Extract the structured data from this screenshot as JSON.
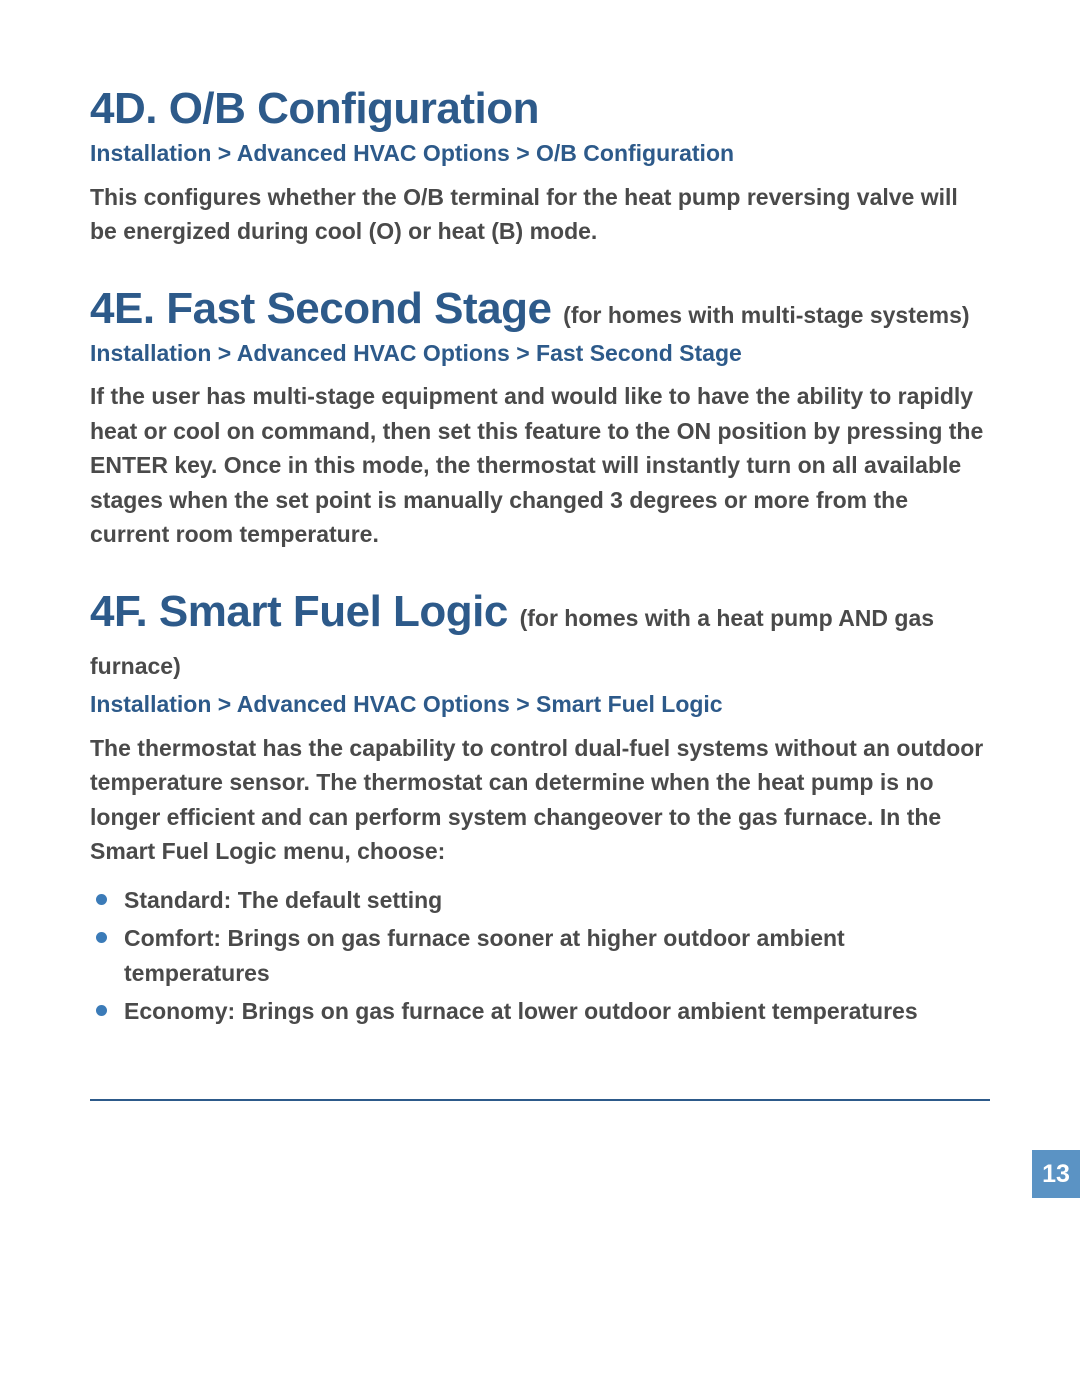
{
  "colors": {
    "heading_blue": "#2d5a8a",
    "body_gray": "#4a4a4a",
    "bullet_blue": "#3b7bb8",
    "pagebox_blue": "#5b93c4",
    "background": "#ffffff"
  },
  "typography": {
    "heading_font": "Arial Narrow",
    "heading_size_pt": 33,
    "body_font": "Verdana",
    "body_size_pt": 17,
    "body_weight": "bold"
  },
  "sections": [
    {
      "id": "4D",
      "title": "4D. O/B Configuration",
      "subtitle": "",
      "breadcrumb": "Installation > Advanced HVAC Options > O/B Configuration",
      "body": "This configures whether the O/B terminal for the heat pump reversing valve will be energized during cool (O) or heat (B) mode."
    },
    {
      "id": "4E",
      "title": "4E. Fast Second Stage ",
      "subtitle": "(for homes with multi-stage systems)",
      "breadcrumb": "Installation > Advanced HVAC Options > Fast Second Stage",
      "body": "If the user has multi-stage equipment and would like to have the ability to rapidly heat or cool on command, then set this feature to the ON position by pressing the ENTER key. Once in this mode, the thermostat will instantly turn on all available stages when the set point is manually changed 3 degrees or more from the current room temperature."
    },
    {
      "id": "4F",
      "title": "4F. Smart Fuel Logic ",
      "subtitle": "(for homes with a heat pump AND gas furnace)",
      "breadcrumb": "Installation > Advanced HVAC Options > Smart Fuel Logic",
      "body": "The thermostat has the capability to control dual-fuel systems without an outdoor temperature sensor. The thermostat can determine when the heat pump is no longer efficient and can perform system changeover to the gas furnace. In the Smart Fuel Logic menu, choose:",
      "bullets": [
        "Standard: The default setting",
        "Comfort: Brings on gas furnace sooner at higher outdoor ambient temperatures",
        "Economy: Brings on gas furnace at lower outdoor ambient temperatures"
      ]
    }
  ],
  "page_number": "13"
}
